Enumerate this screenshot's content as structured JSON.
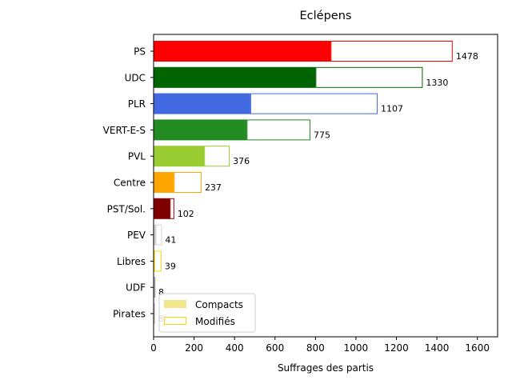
{
  "chart_data": {
    "type": "bar",
    "orientation": "horizontal",
    "title": "Eclépens",
    "xlabel": "Suffrages des partis",
    "ylabel": "",
    "xlim": [
      0,
      1700
    ],
    "xticks": [
      0,
      200,
      400,
      600,
      800,
      1000,
      1200,
      1400,
      1600
    ],
    "grid": false,
    "legend_position": "bottom-left",
    "legend": [
      {
        "label": "Compacts",
        "fill": "#f0e68c",
        "style": "filled"
      },
      {
        "label": "Modifiés",
        "stroke": "#ffd700",
        "style": "outline"
      }
    ],
    "categories": [
      "PS",
      "UDC",
      "PLR",
      "VERT-E-S",
      "PVL",
      "Centre",
      "PST/Sol.",
      "PEV",
      "Libres",
      "UDF",
      "Pirates"
    ],
    "series": [
      {
        "name": "Compacts",
        "values": [
          875,
          800,
          478,
          460,
          250,
          100,
          80,
          10,
          3,
          3,
          0
        ]
      },
      {
        "name": "Modifiés",
        "values": [
          603,
          530,
          629,
          315,
          126,
          137,
          22,
          31,
          36,
          5,
          8
        ]
      }
    ],
    "totals": [
      1478,
      1330,
      1107,
      775,
      376,
      237,
      102,
      41,
      39,
      8,
      8
    ],
    "colors": [
      "#ff0000",
      "#006400",
      "#4169e1",
      "#228b22",
      "#9acd32",
      "#ffa500",
      "#800000",
      "#d3d3d3",
      "#ffd700",
      "#a9a9a9",
      "#d3d3d3"
    ]
  }
}
